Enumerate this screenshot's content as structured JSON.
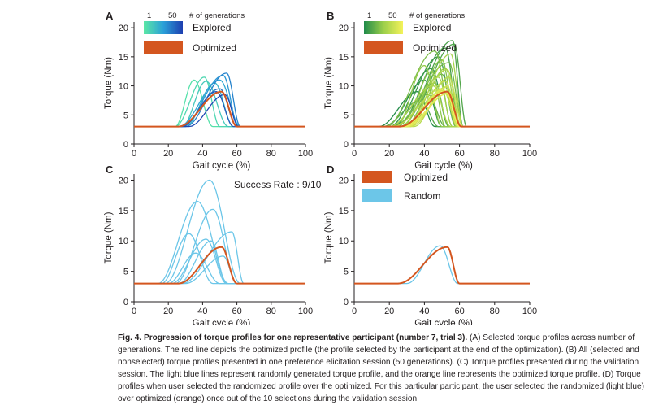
{
  "figure_label": "Fig. 4.",
  "figure_title": "Progression of torque profiles for one representative participant (number 7, trial 3).",
  "caption_body": " (A) Selected torque profiles across number of generations. The red line depicts the optimized profile (the profile selected by the participant at the end of the optimization). (B) All (selected and nonselected) torque profiles presented in one preference elicitation session (50 generations). (C) Torque profiles presented during the validation session. The light blue lines represent randomly generated torque profile, and the orange line represents the optimized torque profile. (D) Torque profiles when user selected the randomized profile over the optimized. For this particular participant, the user selected the randomized (light blue) over optimized (orange) once out of the 10 selections during the validation session.",
  "colors": {
    "optimized": "#d4561f",
    "random": "#6cc6e8",
    "axis": "#231f20",
    "explored_A_low": "#5be8a5",
    "explored_A_high": "#1e3fb0",
    "explored_B_low": "#1f8a4a",
    "explored_B_high": "#f4f25a"
  },
  "chart_data": [
    {
      "panel": "A",
      "type": "line",
      "xlabel": "Gait cycle (%)",
      "ylabel": "Torque (Nm)",
      "xlim": [
        0,
        100
      ],
      "ylim": [
        0,
        21
      ],
      "xticks": [
        0,
        20,
        40,
        60,
        80,
        100
      ],
      "yticks": [
        0,
        5,
        10,
        15,
        20
      ],
      "baseline": 3,
      "legend": {
        "scale_min_label": "1",
        "scale_max_label": "50",
        "scale_title": "# of generations",
        "items": [
          {
            "label": "Explored",
            "kind": "gradient"
          },
          {
            "label": "Optimized",
            "kind": "optimized"
          }
        ]
      },
      "series": [
        {
          "start": 24,
          "peak": 35,
          "end": 46,
          "height": 11.0,
          "gen": 0.05
        },
        {
          "start": 24,
          "peak": 41,
          "end": 50,
          "height": 11.5,
          "gen": 0.12
        },
        {
          "start": 28,
          "peak": 42,
          "end": 55,
          "height": 10.8,
          "gen": 0.22
        },
        {
          "start": 30,
          "peak": 47,
          "end": 58,
          "height": 10.5,
          "gen": 0.35
        },
        {
          "start": 26,
          "peak": 50,
          "end": 62,
          "height": 11.0,
          "gen": 0.45
        },
        {
          "start": 28,
          "peak": 52,
          "end": 61,
          "height": 11.8,
          "gen": 0.55
        },
        {
          "start": 30,
          "peak": 54,
          "end": 62,
          "height": 12.2,
          "gen": 0.65
        },
        {
          "start": 27,
          "peak": 50,
          "end": 60,
          "height": 9.5,
          "gen": 0.75
        },
        {
          "start": 28,
          "peak": 48,
          "end": 58,
          "height": 9.0,
          "gen": 0.85
        },
        {
          "start": 32,
          "peak": 53,
          "end": 61,
          "height": 8.5,
          "gen": 0.95
        },
        {
          "start": 26,
          "peak": 51,
          "end": 60,
          "height": 9.0,
          "kind": "optimized"
        }
      ]
    },
    {
      "panel": "B",
      "type": "line",
      "xlabel": "Gait cycle (%)",
      "ylabel": "Torque (Nm)",
      "xlim": [
        0,
        100
      ],
      "ylim": [
        0,
        21
      ],
      "xticks": [
        0,
        20,
        40,
        60,
        80,
        100
      ],
      "yticks": [
        0,
        5,
        10,
        15,
        20
      ],
      "baseline": 3,
      "legend": {
        "scale_min_label": "1",
        "scale_max_label": "50",
        "scale_title": "# of generations",
        "items": [
          {
            "label": "Explored",
            "kind": "gradient"
          },
          {
            "label": "Optimized",
            "kind": "optimized"
          }
        ]
      },
      "series": [
        {
          "start": 14,
          "peak": 36,
          "end": 46,
          "height": 9.0,
          "gen": 0.02
        },
        {
          "start": 18,
          "peak": 40,
          "end": 50,
          "height": 11.0,
          "gen": 0.05
        },
        {
          "start": 20,
          "peak": 44,
          "end": 54,
          "height": 13.0,
          "gen": 0.08
        },
        {
          "start": 22,
          "peak": 48,
          "end": 58,
          "height": 15.0,
          "gen": 0.11
        },
        {
          "start": 24,
          "peak": 52,
          "end": 60,
          "height": 16.5,
          "gen": 0.14
        },
        {
          "start": 26,
          "peak": 56,
          "end": 62,
          "height": 17.8,
          "gen": 0.17
        },
        {
          "start": 28,
          "peak": 57,
          "end": 64,
          "height": 17.2,
          "gen": 0.2
        },
        {
          "start": 16,
          "peak": 38,
          "end": 48,
          "height": 7.5,
          "gen": 0.23
        },
        {
          "start": 20,
          "peak": 42,
          "end": 52,
          "height": 8.5,
          "gen": 0.26
        },
        {
          "start": 24,
          "peak": 46,
          "end": 54,
          "height": 10.5,
          "gen": 0.29
        },
        {
          "start": 26,
          "peak": 50,
          "end": 58,
          "height": 12.0,
          "gen": 0.32
        },
        {
          "start": 22,
          "peak": 54,
          "end": 62,
          "height": 14.0,
          "gen": 0.35
        },
        {
          "start": 18,
          "peak": 46,
          "end": 56,
          "height": 16.0,
          "gen": 0.38
        },
        {
          "start": 30,
          "peak": 50,
          "end": 58,
          "height": 14.5,
          "gen": 0.41
        },
        {
          "start": 28,
          "peak": 44,
          "end": 52,
          "height": 12.5,
          "gen": 0.44
        },
        {
          "start": 24,
          "peak": 40,
          "end": 50,
          "height": 13.5,
          "gen": 0.47
        },
        {
          "start": 32,
          "peak": 52,
          "end": 60,
          "height": 13.0,
          "gen": 0.5
        },
        {
          "start": 26,
          "peak": 48,
          "end": 56,
          "height": 11.5,
          "gen": 0.53
        },
        {
          "start": 30,
          "peak": 55,
          "end": 62,
          "height": 15.5,
          "gen": 0.56
        },
        {
          "start": 20,
          "peak": 45,
          "end": 55,
          "height": 10.0,
          "gen": 0.59
        },
        {
          "start": 28,
          "peak": 53,
          "end": 61,
          "height": 12.8,
          "gen": 0.62
        },
        {
          "start": 34,
          "peak": 54,
          "end": 62,
          "height": 11.5,
          "gen": 0.65
        },
        {
          "start": 22,
          "peak": 50,
          "end": 60,
          "height": 9.5,
          "gen": 0.68
        },
        {
          "start": 30,
          "peak": 52,
          "end": 60,
          "height": 10.8,
          "gen": 0.71
        },
        {
          "start": 26,
          "peak": 53,
          "end": 61,
          "height": 9.8,
          "gen": 0.74
        },
        {
          "start": 32,
          "peak": 55,
          "end": 62,
          "height": 10.2,
          "gen": 0.77
        },
        {
          "start": 28,
          "peak": 51,
          "end": 59,
          "height": 9.2,
          "gen": 0.8
        },
        {
          "start": 30,
          "peak": 54,
          "end": 61,
          "height": 8.8,
          "gen": 0.84
        },
        {
          "start": 27,
          "peak": 52,
          "end": 60,
          "height": 9.5,
          "gen": 0.88
        },
        {
          "start": 29,
          "peak": 53,
          "end": 60,
          "height": 8.6,
          "gen": 0.92
        },
        {
          "start": 28,
          "peak": 52,
          "end": 60,
          "height": 9.1,
          "gen": 0.96
        },
        {
          "start": 26,
          "peak": 53,
          "end": 61,
          "height": 9.0,
          "kind": "optimized"
        }
      ]
    },
    {
      "panel": "C",
      "type": "line",
      "xlabel": "Gait cycle (%)",
      "ylabel": "Torque (Nm)",
      "xlim": [
        0,
        100
      ],
      "ylim": [
        0,
        21
      ],
      "xticks": [
        0,
        20,
        40,
        60,
        80,
        100
      ],
      "yticks": [
        0,
        5,
        10,
        15,
        20
      ],
      "baseline": 3,
      "annotation": "Success Rate : 9/10",
      "series": [
        {
          "start": 14,
          "peak": 37,
          "end": 55,
          "height": 16.5,
          "kind": "random"
        },
        {
          "start": 18,
          "peak": 44,
          "end": 62,
          "height": 20.0,
          "kind": "random"
        },
        {
          "start": 24,
          "peak": 46,
          "end": 60,
          "height": 15.2,
          "kind": "random"
        },
        {
          "start": 16,
          "peak": 32,
          "end": 46,
          "height": 11.2,
          "kind": "random"
        },
        {
          "start": 28,
          "peak": 57,
          "end": 64,
          "height": 11.5,
          "kind": "random"
        },
        {
          "start": 22,
          "peak": 42,
          "end": 54,
          "height": 10.3,
          "kind": "random"
        },
        {
          "start": 26,
          "peak": 45,
          "end": 54,
          "height": 10.0,
          "kind": "random"
        },
        {
          "start": 20,
          "peak": 36,
          "end": 50,
          "height": 8.0,
          "kind": "random"
        },
        {
          "start": 30,
          "peak": 52,
          "end": 60,
          "height": 7.5,
          "kind": "random"
        },
        {
          "start": 26,
          "peak": 51,
          "end": 60,
          "height": 9.0,
          "kind": "optimized"
        }
      ]
    },
    {
      "panel": "D",
      "type": "line",
      "xlabel": "Gait cycle (%)",
      "ylabel": "Torque (Nm)",
      "xlim": [
        0,
        100
      ],
      "ylim": [
        0,
        21
      ],
      "xticks": [
        0,
        20,
        40,
        60,
        80,
        100
      ],
      "yticks": [
        0,
        5,
        10,
        15,
        20
      ],
      "baseline": 3,
      "legend": {
        "items": [
          {
            "label": "Optimized",
            "kind": "optimized"
          },
          {
            "label": "Random",
            "kind": "random"
          }
        ]
      },
      "series": [
        {
          "start": 30,
          "peak": 49,
          "end": 59,
          "height": 9.2,
          "kind": "random"
        },
        {
          "start": 25,
          "peak": 53,
          "end": 60,
          "height": 9.0,
          "kind": "optimized"
        }
      ]
    }
  ]
}
